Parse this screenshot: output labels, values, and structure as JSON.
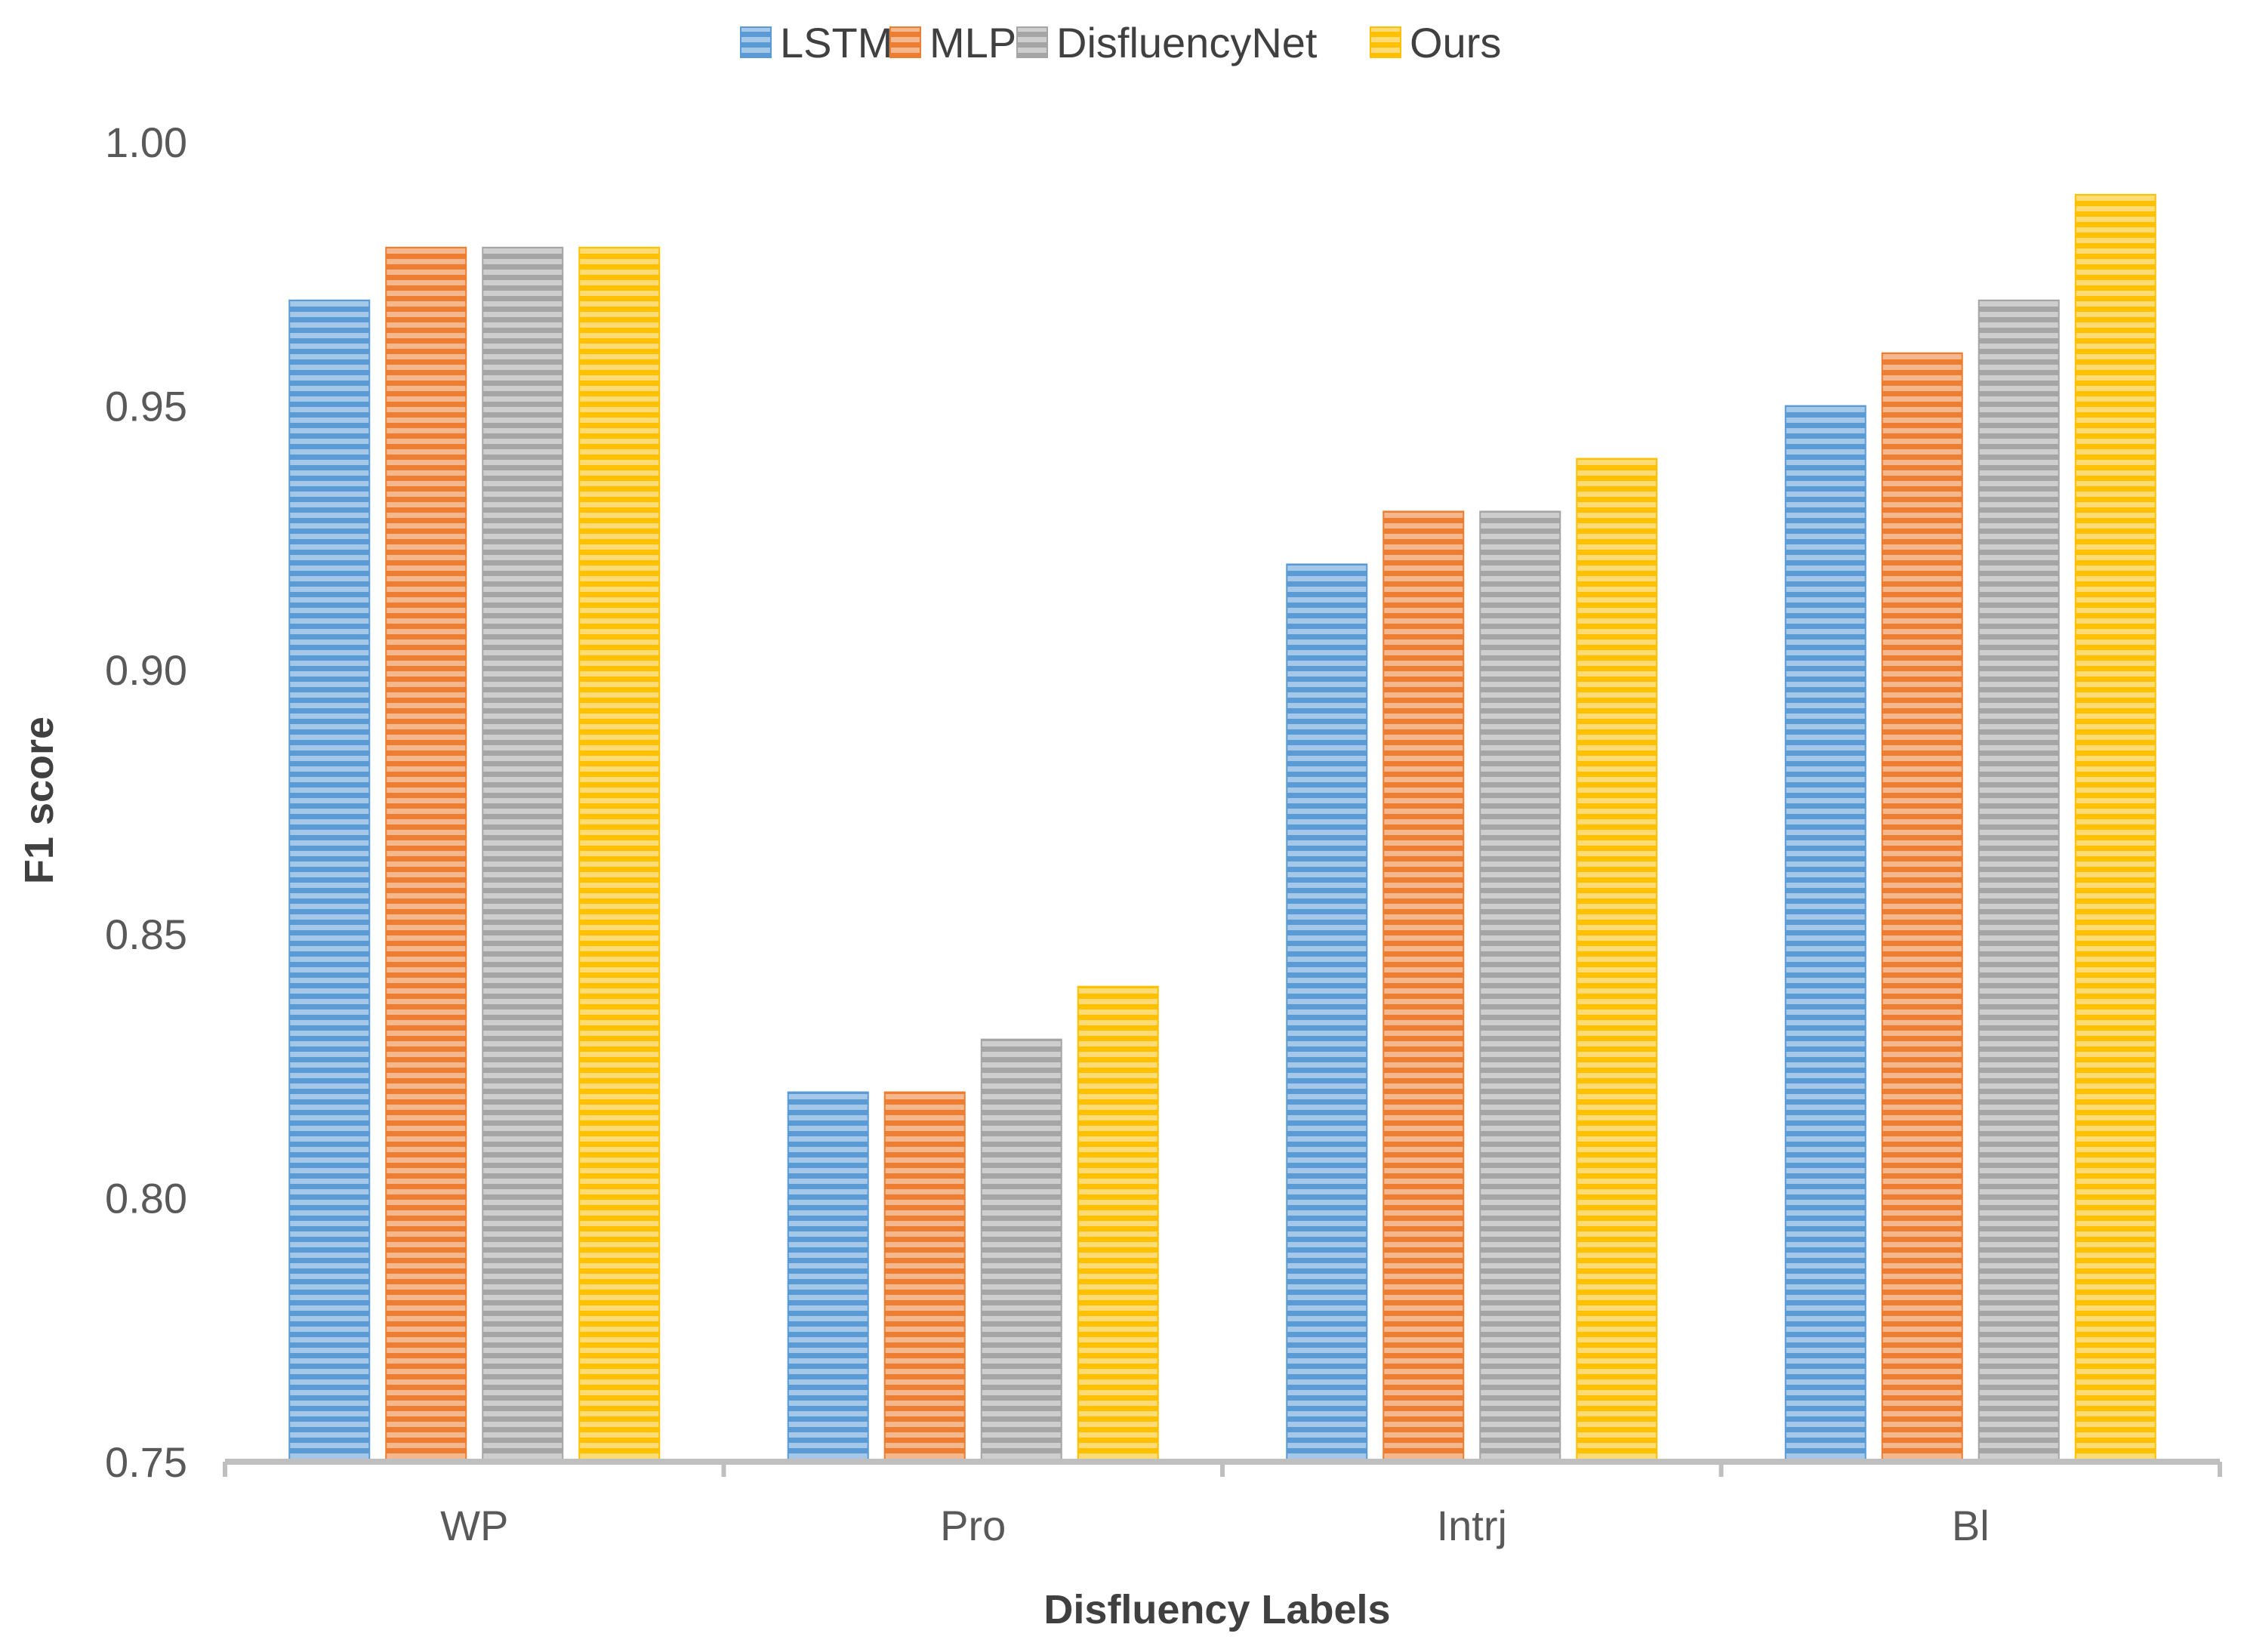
{
  "chart_data": {
    "type": "bar",
    "title": "",
    "xlabel": "Disfluency Labels",
    "ylabel": "F1 score",
    "ylim": [
      0.75,
      1.0
    ],
    "yticks": [
      "0.75",
      "0.80",
      "0.85",
      "0.90",
      "0.95",
      "1.00"
    ],
    "ytick_values": [
      0.75,
      0.8,
      0.85,
      0.9,
      0.95,
      1.0
    ],
    "grid": false,
    "legend_position": "top-center",
    "categories": [
      "WP",
      "Pro",
      "Intrj",
      "Bl"
    ],
    "series": [
      {
        "name": "LSTM",
        "color": "#5b9bd5",
        "values": [
          0.97,
          0.82,
          0.92,
          0.95
        ]
      },
      {
        "name": "MLP",
        "color": "#ed7d31",
        "values": [
          0.98,
          0.82,
          0.93,
          0.96
        ]
      },
      {
        "name": "DisfluencyNet",
        "color": "#a5a5a5",
        "values": [
          0.98,
          0.83,
          0.93,
          0.97
        ]
      },
      {
        "name": "Ours",
        "color": "#ffc000",
        "values": [
          0.98,
          0.84,
          0.94,
          0.99
        ]
      }
    ]
  }
}
